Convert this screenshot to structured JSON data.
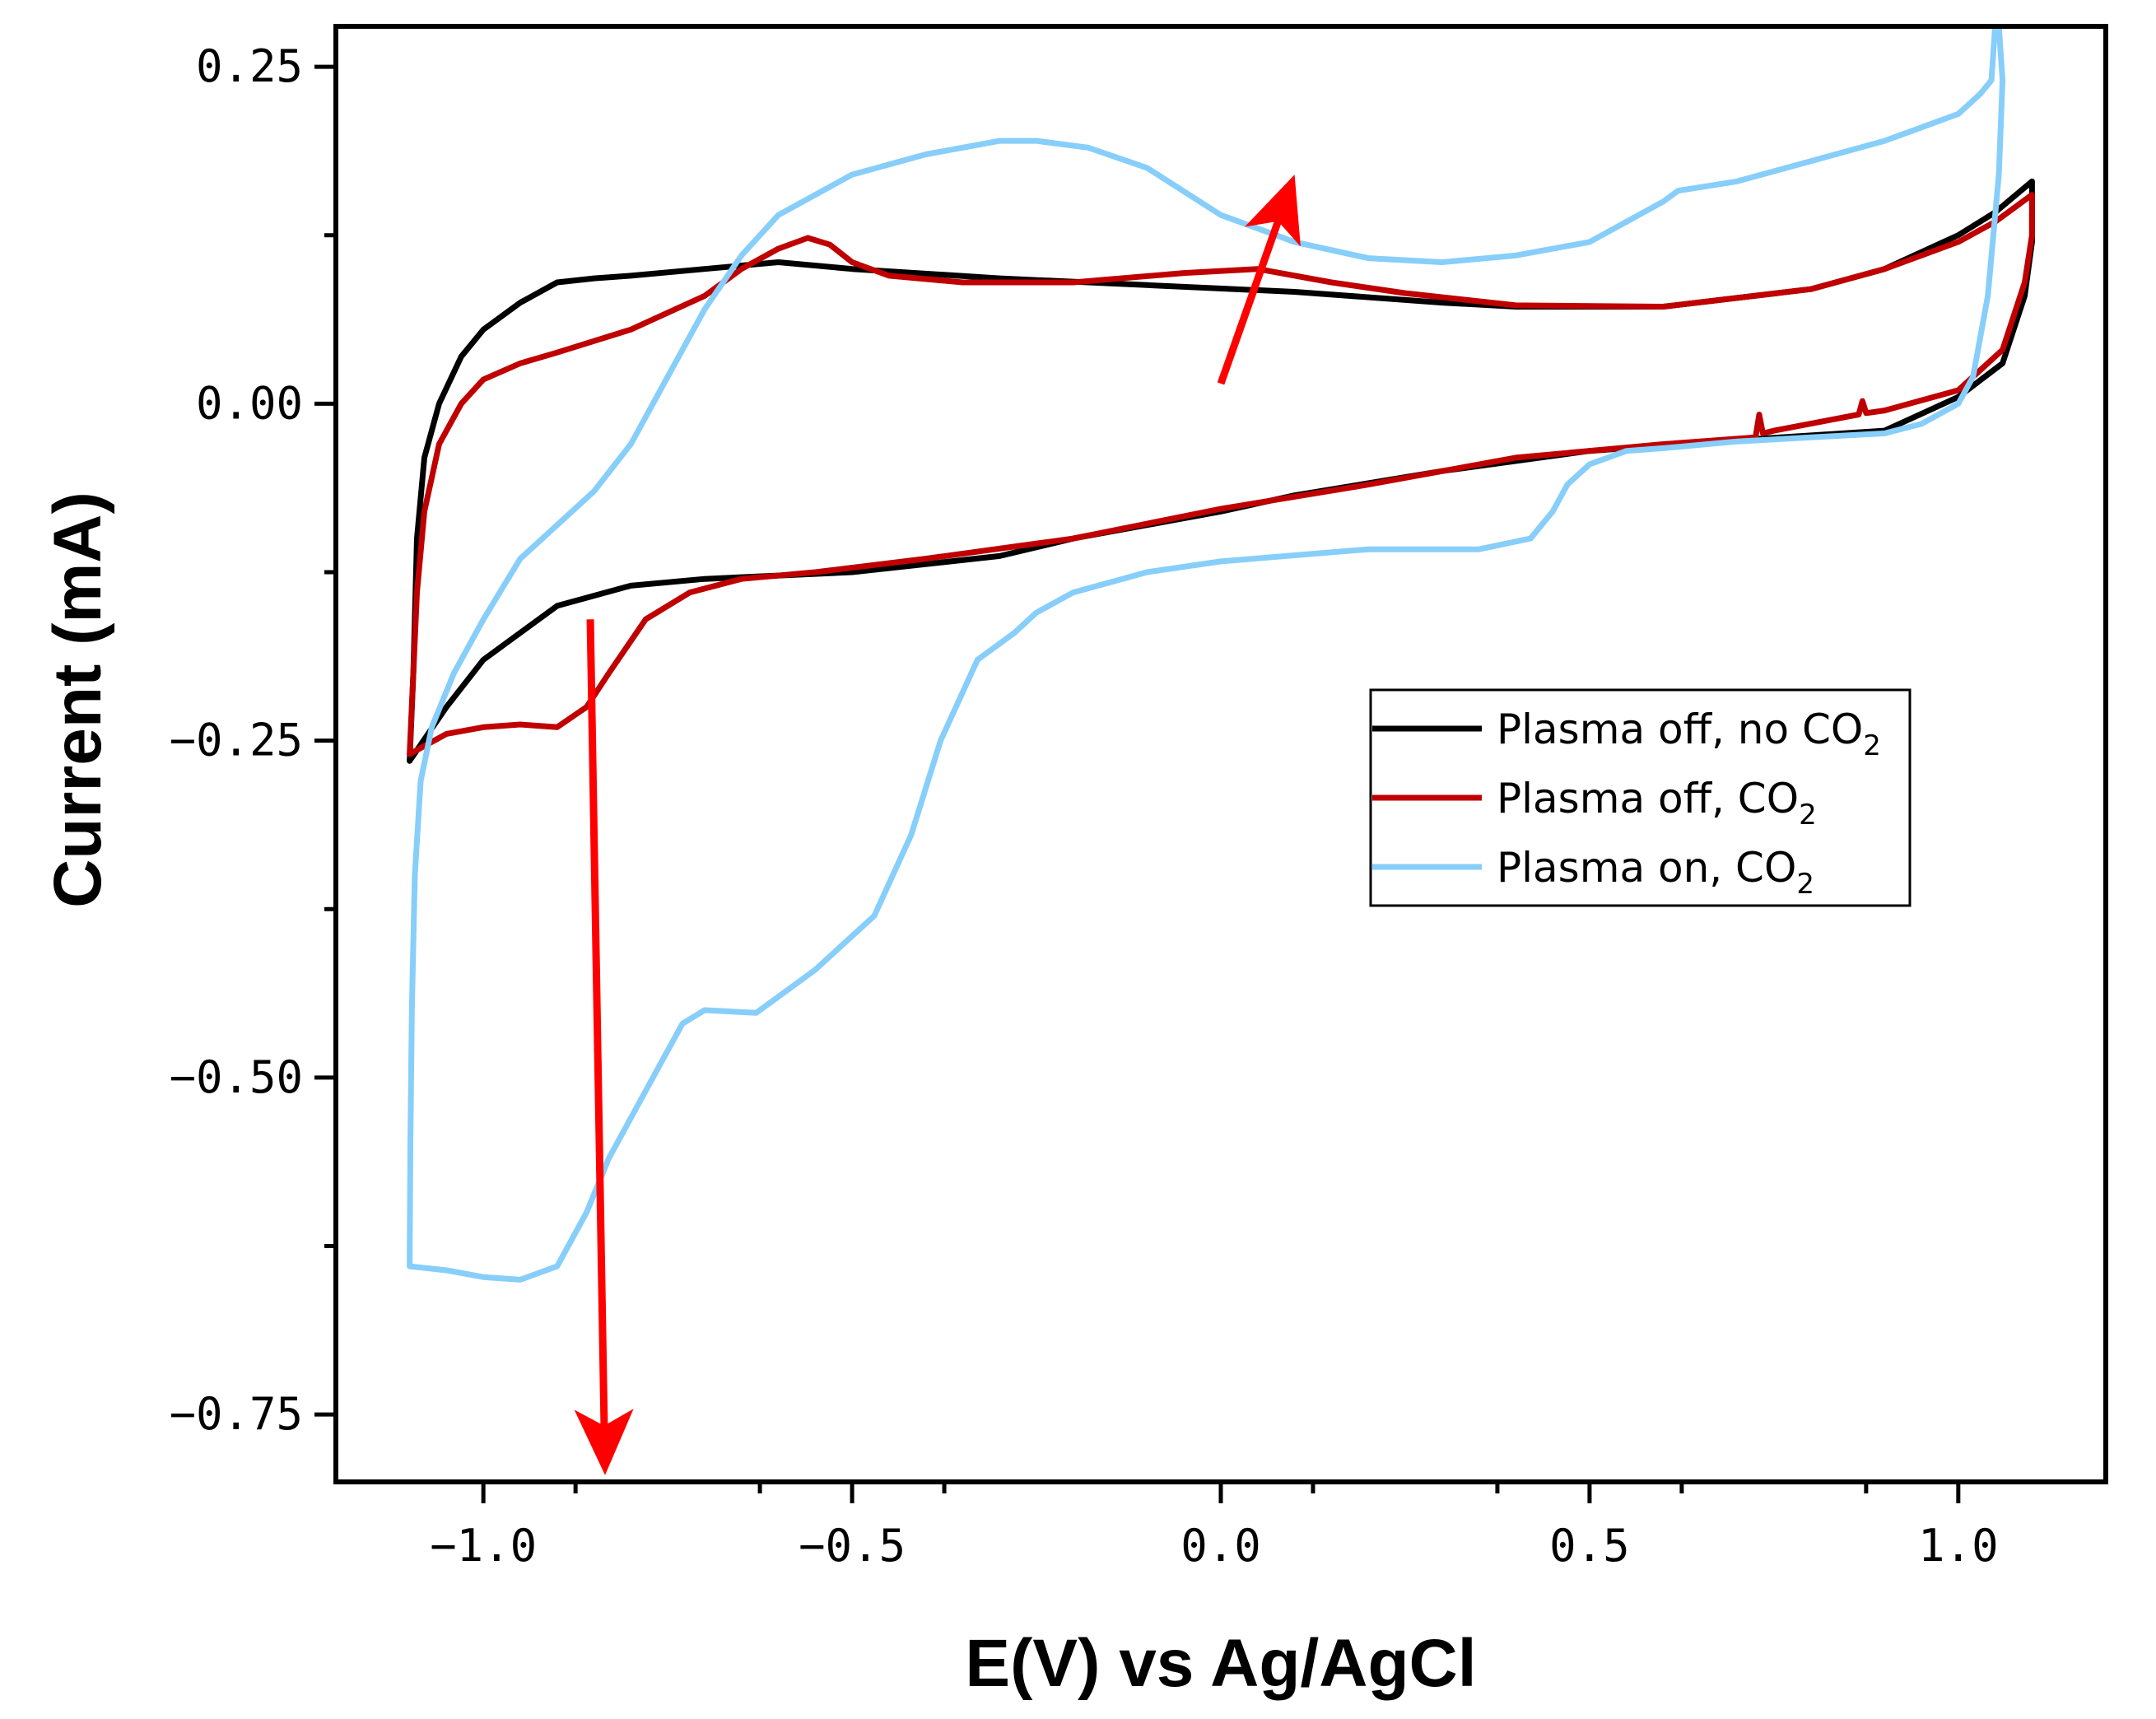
{
  "chart_data": {
    "type": "line",
    "title": "",
    "xlabel": "E(V) vs Ag/AgCl",
    "ylabel": "Current (mA)",
    "xlim": [
      -1.2,
      1.2
    ],
    "ylim": [
      -0.8,
      0.28
    ],
    "xticks": [
      -1.0,
      -0.5,
      0.0,
      0.5,
      1.0
    ],
    "xtick_labels": [
      "−1.0",
      "−0.5",
      "0.0",
      "0.5",
      "1.0"
    ],
    "xminor": [
      -1.125,
      -0.875,
      -0.625,
      -0.375,
      -0.125,
      0.125,
      0.375,
      0.625,
      0.875,
      1.125
    ],
    "xminor_hidden": [
      -1.125,
      -0.125,
      1.125
    ],
    "yticks": [
      0.25,
      0.0,
      -0.25,
      -0.5,
      -0.75
    ],
    "ytick_labels": [
      "0.25",
      "0.00",
      "−0.25",
      "−0.50",
      "−0.75"
    ],
    "yminor": [
      0.125,
      -0.125,
      -0.375,
      -0.625
    ],
    "grid": false,
    "legend": {
      "position": "center-right",
      "entries": [
        {
          "text": "Plasma off, no CO",
          "sub": "2",
          "color": "#000000"
        },
        {
          "text": "Plasma off, CO",
          "sub": "2",
          "color": "#c00000"
        },
        {
          "text": "Plasma on, CO",
          "sub": "2",
          "color": "#87cefa"
        }
      ]
    },
    "series": [
      {
        "name": "Plasma off, no CO2",
        "color": "#000000",
        "points": [
          [
            -1.1,
            -0.265
          ],
          [
            -1.095,
            -0.2
          ],
          [
            -1.09,
            -0.1
          ],
          [
            -1.08,
            -0.04
          ],
          [
            -1.06,
            0.0
          ],
          [
            -1.03,
            0.035
          ],
          [
            -1.0,
            0.055
          ],
          [
            -0.95,
            0.075
          ],
          [
            -0.9,
            0.09
          ],
          [
            -0.85,
            0.093
          ],
          [
            -0.8,
            0.095
          ],
          [
            -0.7,
            0.1
          ],
          [
            -0.6,
            0.105
          ],
          [
            -0.5,
            0.1
          ],
          [
            -0.3,
            0.093
          ],
          [
            -0.1,
            0.088
          ],
          [
            0.1,
            0.083
          ],
          [
            0.3,
            0.075
          ],
          [
            0.4,
            0.072
          ],
          [
            0.6,
            0.072
          ],
          [
            0.8,
            0.085
          ],
          [
            0.9,
            0.1
          ],
          [
            1.0,
            0.125
          ],
          [
            1.05,
            0.142
          ],
          [
            1.1,
            0.165
          ],
          [
            1.1,
            0.12
          ],
          [
            1.09,
            0.08
          ],
          [
            1.06,
            0.03
          ],
          [
            1.0,
            0.005
          ],
          [
            0.9,
            -0.02
          ],
          [
            0.7,
            -0.027
          ],
          [
            0.5,
            -0.035
          ],
          [
            0.3,
            -0.05
          ],
          [
            0.1,
            -0.068
          ],
          [
            0.0,
            -0.08
          ],
          [
            -0.2,
            -0.1
          ],
          [
            -0.3,
            -0.113
          ],
          [
            -0.5,
            -0.125
          ],
          [
            -0.7,
            -0.13
          ],
          [
            -0.8,
            -0.135
          ],
          [
            -0.9,
            -0.15
          ],
          [
            -1.0,
            -0.19
          ],
          [
            -1.05,
            -0.225
          ],
          [
            -1.1,
            -0.265
          ]
        ]
      },
      {
        "name": "Plasma off, CO2",
        "color": "#c00000",
        "points": [
          [
            -1.1,
            -0.26
          ],
          [
            -1.095,
            -0.2
          ],
          [
            -1.09,
            -0.14
          ],
          [
            -1.08,
            -0.08
          ],
          [
            -1.06,
            -0.03
          ],
          [
            -1.03,
            0.0
          ],
          [
            -1.0,
            0.018
          ],
          [
            -0.95,
            0.03
          ],
          [
            -0.9,
            0.038
          ],
          [
            -0.8,
            0.055
          ],
          [
            -0.7,
            0.08
          ],
          [
            -0.65,
            0.1
          ],
          [
            -0.6,
            0.115
          ],
          [
            -0.56,
            0.123
          ],
          [
            -0.53,
            0.118
          ],
          [
            -0.5,
            0.105
          ],
          [
            -0.45,
            0.095
          ],
          [
            -0.35,
            0.09
          ],
          [
            -0.2,
            0.09
          ],
          [
            -0.05,
            0.097
          ],
          [
            0.05,
            0.1
          ],
          [
            0.15,
            0.09
          ],
          [
            0.25,
            0.082
          ],
          [
            0.4,
            0.073
          ],
          [
            0.6,
            0.072
          ],
          [
            0.8,
            0.085
          ],
          [
            0.9,
            0.1
          ],
          [
            1.0,
            0.12
          ],
          [
            1.05,
            0.135
          ],
          [
            1.1,
            0.155
          ],
          [
            1.1,
            0.125
          ],
          [
            1.09,
            0.09
          ],
          [
            1.06,
            0.04
          ],
          [
            1.0,
            0.01
          ],
          [
            0.9,
            -0.005
          ],
          [
            0.875,
            -0.007
          ],
          [
            0.87,
            0.002
          ],
          [
            0.865,
            -0.008
          ],
          [
            0.75,
            -0.02
          ],
          [
            0.735,
            -0.022
          ],
          [
            0.73,
            -0.008
          ],
          [
            0.725,
            -0.025
          ],
          [
            0.6,
            -0.03
          ],
          [
            0.4,
            -0.04
          ],
          [
            0.2,
            -0.06
          ],
          [
            0.0,
            -0.078
          ],
          [
            -0.2,
            -0.1
          ],
          [
            -0.4,
            -0.115
          ],
          [
            -0.55,
            -0.125
          ],
          [
            -0.65,
            -0.13
          ],
          [
            -0.72,
            -0.14
          ],
          [
            -0.78,
            -0.16
          ],
          [
            -0.83,
            -0.2
          ],
          [
            -0.86,
            -0.225
          ],
          [
            -0.9,
            -0.24
          ],
          [
            -0.95,
            -0.238
          ],
          [
            -1.0,
            -0.24
          ],
          [
            -1.05,
            -0.245
          ],
          [
            -1.1,
            -0.26
          ]
        ]
      },
      {
        "name": "Plasma on, CO2",
        "color": "#87cefa",
        "points": [
          [
            -1.1,
            -0.64
          ],
          [
            -1.099,
            -0.55
          ],
          [
            -1.097,
            -0.45
          ],
          [
            -1.093,
            -0.35
          ],
          [
            -1.085,
            -0.28
          ],
          [
            -1.07,
            -0.24
          ],
          [
            -1.04,
            -0.2
          ],
          [
            -1.0,
            -0.16
          ],
          [
            -0.95,
            -0.115
          ],
          [
            -0.9,
            -0.09
          ],
          [
            -0.85,
            -0.065
          ],
          [
            -0.8,
            -0.03
          ],
          [
            -0.75,
            0.02
          ],
          [
            -0.7,
            0.07
          ],
          [
            -0.65,
            0.11
          ],
          [
            -0.6,
            0.14
          ],
          [
            -0.5,
            0.17
          ],
          [
            -0.4,
            0.185
          ],
          [
            -0.3,
            0.195
          ],
          [
            -0.25,
            0.195
          ],
          [
            -0.18,
            0.19
          ],
          [
            -0.1,
            0.175
          ],
          [
            0.0,
            0.14
          ],
          [
            0.1,
            0.12
          ],
          [
            0.2,
            0.108
          ],
          [
            0.3,
            0.105
          ],
          [
            0.4,
            0.11
          ],
          [
            0.5,
            0.12
          ],
          [
            0.6,
            0.15
          ],
          [
            0.62,
            0.158
          ],
          [
            0.7,
            0.165
          ],
          [
            0.8,
            0.18
          ],
          [
            0.9,
            0.195
          ],
          [
            0.95,
            0.205
          ],
          [
            1.0,
            0.215
          ],
          [
            1.03,
            0.23
          ],
          [
            1.045,
            0.24
          ],
          [
            1.05,
            0.28
          ],
          [
            1.055,
            0.28
          ],
          [
            1.06,
            0.24
          ],
          [
            1.055,
            0.17
          ],
          [
            1.04,
            0.08
          ],
          [
            1.02,
            0.02
          ],
          [
            1.0,
            0.0
          ],
          [
            0.95,
            -0.015
          ],
          [
            0.9,
            -0.022
          ],
          [
            0.8,
            -0.025
          ],
          [
            0.7,
            -0.028
          ],
          [
            0.6,
            -0.033
          ],
          [
            0.55,
            -0.035
          ],
          [
            0.5,
            -0.045
          ],
          [
            0.47,
            -0.06
          ],
          [
            0.45,
            -0.08
          ],
          [
            0.42,
            -0.1
          ],
          [
            0.35,
            -0.108
          ],
          [
            0.2,
            -0.108
          ],
          [
            0.0,
            -0.117
          ],
          [
            -0.1,
            -0.125
          ],
          [
            -0.2,
            -0.14
          ],
          [
            -0.25,
            -0.155
          ],
          [
            -0.28,
            -0.17
          ],
          [
            -0.33,
            -0.19
          ],
          [
            -0.38,
            -0.25
          ],
          [
            -0.42,
            -0.32
          ],
          [
            -0.47,
            -0.38
          ],
          [
            -0.55,
            -0.42
          ],
          [
            -0.63,
            -0.452
          ],
          [
            -0.7,
            -0.45
          ],
          [
            -0.73,
            -0.46
          ],
          [
            -0.75,
            -0.48
          ],
          [
            -0.8,
            -0.53
          ],
          [
            -0.83,
            -0.56
          ],
          [
            -0.86,
            -0.6
          ],
          [
            -0.9,
            -0.64
          ],
          [
            -0.95,
            -0.65
          ],
          [
            -1.0,
            -0.648
          ],
          [
            -1.05,
            -0.643
          ],
          [
            -1.1,
            -0.64
          ]
        ]
      }
    ],
    "annotations": [
      {
        "type": "arrow",
        "color": "#ff0000",
        "from": [
          -0.855,
          -0.16
        ],
        "to": [
          -0.835,
          -0.795
        ]
      },
      {
        "type": "arrow",
        "color": "#ff0000",
        "from": [
          0.0,
          0.015
        ],
        "to": [
          0.1,
          0.17
        ]
      }
    ]
  }
}
